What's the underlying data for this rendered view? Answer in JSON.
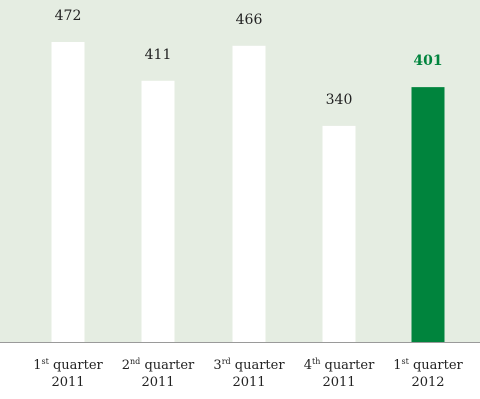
{
  "chart_data": {
    "type": "bar",
    "categories": [
      {
        "ordinal": "1",
        "suffix": "st",
        "word": "quarter",
        "year": "2011"
      },
      {
        "ordinal": "2",
        "suffix": "nd",
        "word": "quarter",
        "year": "2011"
      },
      {
        "ordinal": "3",
        "suffix": "rd",
        "word": "quarter",
        "year": "2011"
      },
      {
        "ordinal": "4",
        "suffix": "th",
        "word": "quarter",
        "year": "2011"
      },
      {
        "ordinal": "1",
        "suffix": "st",
        "word": "quarter",
        "year": "2012"
      }
    ],
    "values": [
      472,
      411,
      466,
      340,
      401
    ],
    "value_labels": [
      "472",
      "411",
      "466",
      "340",
      "401"
    ],
    "highlight_index": 4,
    "ylim": [
      0,
      480
    ],
    "grid": false,
    "title": "",
    "xlabel": "",
    "ylabel": "",
    "colors": {
      "background": "#e5ede2",
      "bar": "#ffffff",
      "highlight_bar": "#00843d",
      "label": "#222222",
      "highlight_label": "#00843d",
      "axis": "#9a9a9a"
    }
  }
}
